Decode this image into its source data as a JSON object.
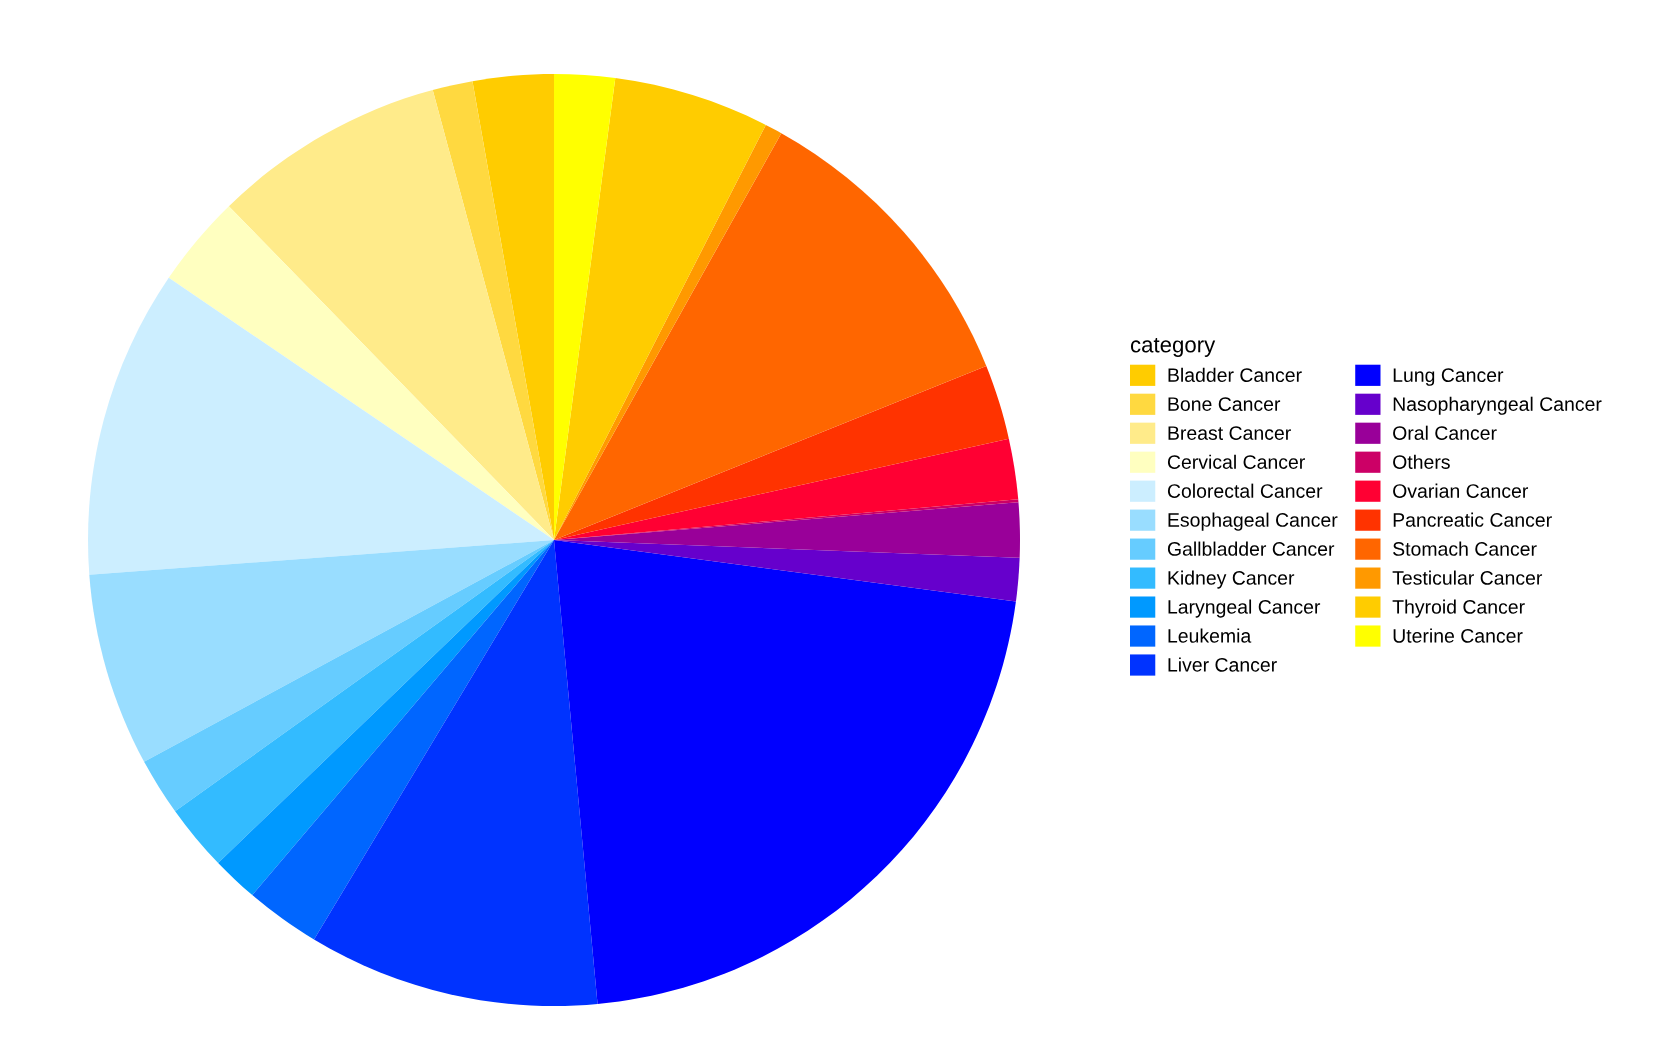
{
  "chart_data": {
    "type": "pie",
    "legend_title": "category",
    "legend": "right",
    "categories": [
      "Bladder Cancer",
      "Bone Cancer",
      "Breast Cancer",
      "Cervical Cancer",
      "Colorectal Cancer",
      "Esophageal Cancer",
      "Gallbladder Cancer",
      "Kidney Cancer",
      "Laryngeal Cancer",
      "Leukemia",
      "Liver Cancer",
      "Lung Cancer",
      "Nasopharyngeal Cancer",
      "Oral Cancer",
      "Others",
      "Ovarian Cancer",
      "Pancreatic Cancer",
      "Stomach Cancer",
      "Testicular Cancer",
      "Thyroid Cancer",
      "Uterine Cancer"
    ],
    "values": [
      2.8,
      1.39,
      8.1,
      3.2,
      10.7,
      6.7,
      2.0,
      2.3,
      1.6,
      2.6,
      10.1,
      21.4,
      1.5,
      1.9,
      0.1,
      2.1,
      2.6,
      10.8,
      0.6,
      5.41,
      2.1
    ],
    "colors": [
      "#ffcc00",
      "#ffd940",
      "#ffeb8a",
      "#ffffc0",
      "#cceeff",
      "#99ddff",
      "#66ccff",
      "#33bbff",
      "#0099ff",
      "#0066ff",
      "#0033ff",
      "#0000ff",
      "#6600cc",
      "#990099",
      "#cc0066",
      "#ff0033",
      "#ff3300",
      "#ff6600",
      "#ff9900",
      "#ffcc00",
      "#ffff00"
    ]
  }
}
